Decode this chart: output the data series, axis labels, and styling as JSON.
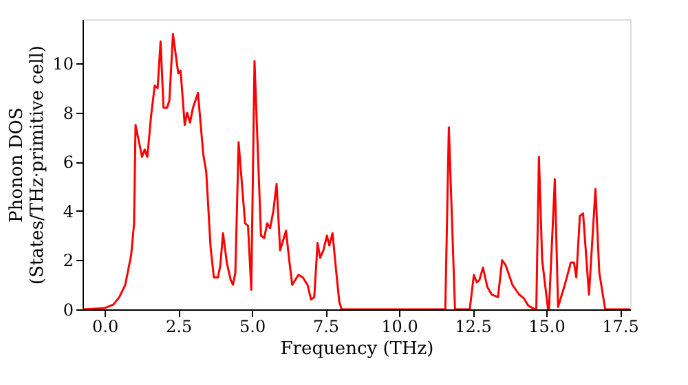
{
  "chart_data": {
    "type": "line",
    "xlabel": "Frequency (THz)",
    "ylabel": "Phonon DOS\n(States/THz·primitive cell)",
    "xlim": [
      -0.75,
      17.85
    ],
    "ylim": [
      0,
      11.8
    ],
    "xticks": [
      {
        "value": 0,
        "label": "0.0"
      },
      {
        "value": 2.5,
        "label": "2.5"
      },
      {
        "value": 5,
        "label": "5.0"
      },
      {
        "value": 7.5,
        "label": "7.5"
      },
      {
        "value": 10,
        "label": "10.0"
      },
      {
        "value": 12.5,
        "label": "12.5"
      },
      {
        "value": 15,
        "label": "15.0"
      },
      {
        "value": 17.5,
        "label": "17.5"
      }
    ],
    "yticks": [
      0,
      2,
      4,
      6,
      8,
      10
    ],
    "grid": false,
    "line_style": "solid",
    "series": [
      {
        "color": "#ff0000",
        "x": [
          -0.75,
          0.0,
          0.3,
          0.5,
          0.7,
          0.9,
          1.0,
          1.05,
          1.27,
          1.36,
          1.45,
          1.58,
          1.7,
          1.8,
          1.9,
          2.0,
          2.12,
          2.2,
          2.32,
          2.5,
          2.58,
          2.72,
          2.8,
          2.9,
          3.0,
          3.17,
          3.35,
          3.45,
          3.6,
          3.71,
          3.85,
          3.93,
          4.02,
          4.15,
          4.28,
          4.36,
          4.44,
          4.55,
          4.77,
          4.87,
          4.98,
          5.09,
          5.31,
          5.42,
          5.52,
          5.62,
          5.73,
          5.84,
          5.96,
          6.11,
          6.16,
          6.27,
          6.37,
          6.58,
          6.73,
          6.89,
          7.01,
          7.12,
          7.23,
          7.32,
          7.43,
          7.55,
          7.63,
          7.74,
          7.86,
          7.97,
          8.05,
          11.57,
          11.69,
          11.9,
          12.4,
          12.54,
          12.64,
          12.73,
          12.85,
          13.0,
          13.15,
          13.36,
          13.5,
          13.62,
          13.85,
          14.08,
          14.24,
          14.39,
          14.62,
          14.66,
          14.75,
          14.86,
          15.06,
          15.09,
          15.29,
          15.4,
          15.63,
          15.83,
          15.94,
          16.02,
          16.14,
          16.25,
          16.45,
          16.67,
          16.8,
          17.0,
          17.85
        ],
        "values": [
          0,
          0.05,
          0.2,
          0.5,
          1.0,
          2.2,
          3.5,
          7.5,
          6.2,
          6.5,
          6.2,
          7.9,
          9.1,
          9.0,
          10.9,
          8.2,
          8.2,
          8.5,
          11.2,
          9.6,
          9.7,
          7.5,
          8.0,
          7.6,
          8.2,
          8.8,
          6.3,
          5.6,
          2.5,
          1.3,
          1.3,
          1.8,
          3.1,
          1.9,
          1.2,
          1.0,
          1.5,
          6.8,
          3.5,
          3.4,
          0.8,
          10.1,
          3.0,
          2.9,
          3.5,
          3.3,
          4.0,
          5.1,
          2.4,
          3.0,
          3.2,
          2.0,
          1.0,
          1.4,
          1.3,
          1.0,
          0.4,
          0.5,
          2.7,
          2.1,
          2.4,
          3.0,
          2.6,
          3.1,
          1.6,
          0.3,
          0,
          0,
          7.4,
          0,
          0,
          1.4,
          1.1,
          1.2,
          1.7,
          0.9,
          0.6,
          0.5,
          2.0,
          1.8,
          1.0,
          0.6,
          0.45,
          0.15,
          0,
          0,
          6.2,
          2.0,
          0,
          0,
          5.3,
          0.1,
          1.0,
          1.9,
          1.9,
          1.3,
          3.8,
          3.9,
          0.6,
          4.9,
          1.5,
          0,
          0
        ]
      }
    ]
  }
}
